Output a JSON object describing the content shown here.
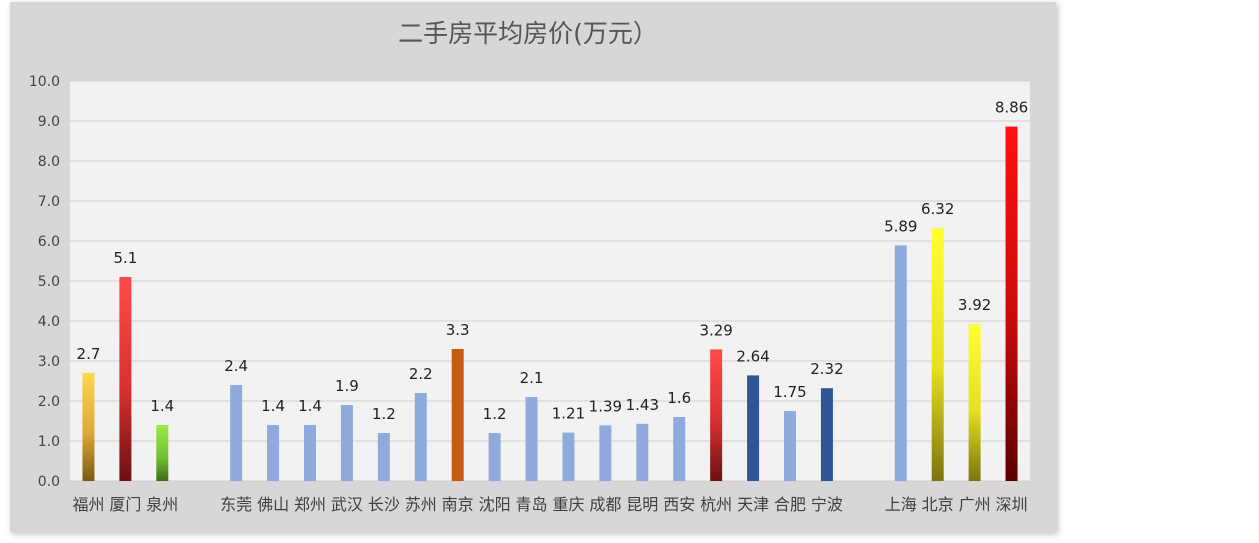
{
  "chart_data": {
    "type": "bar",
    "title": "二手房平均房价(万元）",
    "xlabel": "",
    "ylabel": "",
    "ylim": [
      0,
      10
    ],
    "yticks": [
      "0.0",
      "1.0",
      "2.0",
      "3.0",
      "4.0",
      "5.0",
      "6.0",
      "7.0",
      "8.0",
      "9.0",
      "10.0"
    ],
    "grid": true,
    "legend": "none",
    "categories": [
      "福州",
      "厦门",
      "泉州",
      "",
      "东莞",
      "佛山",
      "郑州",
      "武汉",
      "长沙",
      "苏州",
      "南京",
      "沈阳",
      "青岛",
      "重庆",
      "成都",
      "昆明",
      "西安",
      "杭州",
      "天津",
      "合肥",
      "宁波",
      "",
      "上海",
      "北京",
      "广州",
      "深圳"
    ],
    "values": [
      2.7,
      5.1,
      1.4,
      null,
      2.4,
      1.4,
      1.4,
      1.9,
      1.2,
      2.2,
      3.3,
      1.2,
      2.1,
      1.21,
      1.39,
      1.43,
      1.6,
      3.29,
      2.64,
      1.75,
      2.32,
      null,
      5.89,
      6.32,
      3.92,
      8.86
    ],
    "data_labels": [
      "2.7",
      "5.1",
      "1.4",
      "",
      "2.4",
      "1.4",
      "1.4",
      "1.9",
      "1.2",
      "2.2",
      "3.3",
      "1.2",
      "2.1",
      "1.21",
      "1.39",
      "1.43",
      "1.6",
      "3.29",
      "2.64",
      "1.75",
      "2.32",
      "",
      "5.89",
      "6.32",
      "3.92",
      "8.86"
    ],
    "bar_colors": [
      "gold-gradient",
      "red-gradient",
      "green-gradient",
      "",
      "#8faadc",
      "#8faadc",
      "#8faadc",
      "#8faadc",
      "#8faadc",
      "#8faadc",
      "#c55a11",
      "#8faadc",
      "#8faadc",
      "#8faadc",
      "#8faadc",
      "#8faadc",
      "#8faadc",
      "red-gradient",
      "#2f5597",
      "#8faadc",
      "#2f5597",
      "",
      "#8faadc",
      "yellow-gradient",
      "yellow-gradient",
      "darkred-gradient"
    ],
    "colors": {
      "panel_bg": "#d8d6d7",
      "plot_bg": "#f2f2f2",
      "grid": "#d0d0d0",
      "light_blue": "#8faadc",
      "dark_blue": "#2f5597",
      "orange": "#c55a11"
    }
  }
}
